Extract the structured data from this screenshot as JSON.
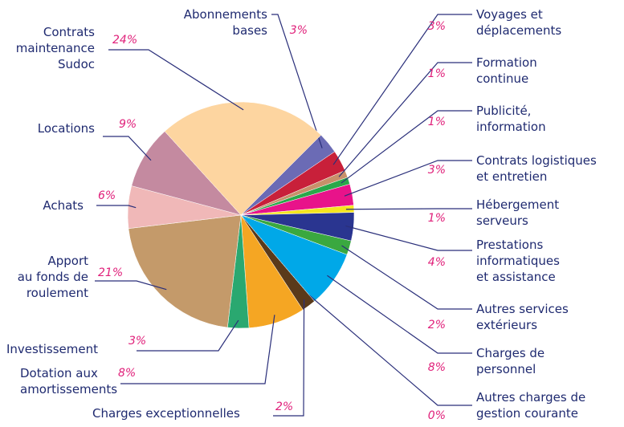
{
  "chart_data": {
    "type": "pie",
    "categories": [
      "Abonnements\nbases",
      "Voyages et\ndéplacements",
      "Formation\ncontinue",
      "Publicité,\ninformation",
      "Contrats logistiques\net entretien",
      "Hébergement\nserveurs",
      "Prestations\ninformatiques\net assistance",
      "Autres services\nextérieurs",
      "Charges de\npersonnel",
      "Autres charges de\ngestion courante",
      "Charges exceptionnelles",
      "Dotation aux\namortissements",
      "Investissement",
      "Apport\nau fonds de\nroulement",
      "Achats",
      "Locations",
      "Contrats\nmaintenance\nSudoc"
    ],
    "values": [
      3,
      3,
      1,
      1,
      3,
      1,
      4,
      2,
      8,
      0,
      2,
      8,
      3,
      21,
      6,
      9,
      24
    ],
    "value_labels": [
      "3%",
      "3%",
      "1%",
      "1%",
      "3%",
      "1%",
      "4%",
      "2%",
      "8%",
      "0%",
      "2%",
      "8%",
      "3%",
      "21%",
      "6%",
      "9%",
      "24%"
    ],
    "colors": [
      "#6b6bb5",
      "#c8203a",
      "#c8906a",
      "#2aa84a",
      "#e8138a",
      "#f5e61e",
      "#2a3590",
      "#3aa840",
      "#00a8e8",
      "#888888",
      "#5a3a1a",
      "#f5a623",
      "#2aa870",
      "#c49a6a",
      "#f0b8b8",
      "#c48aa0",
      "#fdd5a0"
    ]
  }
}
